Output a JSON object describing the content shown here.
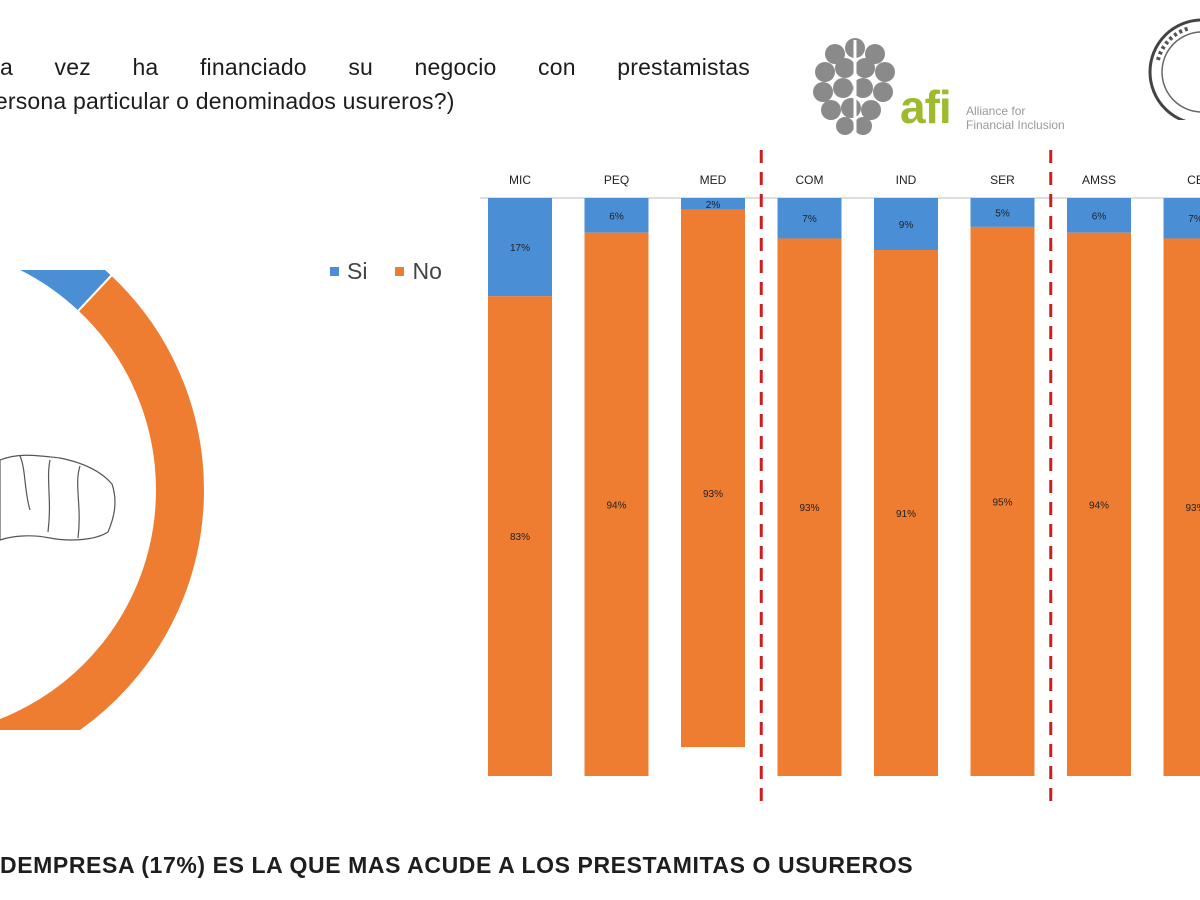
{
  "question": {
    "line1": [
      "a",
      "vez",
      "ha",
      "financiado",
      "su",
      "negocio",
      "con",
      "prestamistas"
    ],
    "line2": "(persona particular o denominados usureros?)"
  },
  "logo": {
    "mark": "afi",
    "line1": "Alliance for",
    "line2": "Financial Inclusion"
  },
  "footer": "DEMPRESA (17%) ES LA QUE MAS ACUDE A LOS PRESTAMITAS O USUREROS",
  "colors": {
    "si": "#4a8fd6",
    "no": "#ee7d31",
    "divider": "#cc1f1f"
  },
  "chart_data": [
    {
      "type": "pie",
      "style": "donut",
      "slices": [
        {
          "name": "Si",
          "value": 7,
          "label": "7%"
        },
        {
          "name": "No",
          "value": 93
        }
      ]
    },
    {
      "type": "bar",
      "stacked": true,
      "categories": [
        "MIC",
        "PEQ",
        "MED",
        "COM",
        "IND",
        "SER",
        "AMSS",
        "CE"
      ],
      "series": [
        {
          "name": "Si",
          "values": [
            17,
            6,
            2,
            7,
            9,
            5,
            6,
            7
          ],
          "labels": [
            "17%",
            "6%",
            "2%",
            "7%",
            "9%",
            "5%",
            "6%",
            "7%"
          ]
        },
        {
          "name": "No",
          "values": [
            83,
            94,
            93,
            93,
            91,
            95,
            94,
            93
          ],
          "labels": [
            "83%",
            "94%",
            "93%",
            "93%",
            "91%",
            "95%",
            "94%",
            "93%"
          ]
        }
      ],
      "legend": [
        "Si",
        "No"
      ],
      "legend_position": "left",
      "group_dividers_after": [
        "MED",
        "SER"
      ]
    }
  ]
}
